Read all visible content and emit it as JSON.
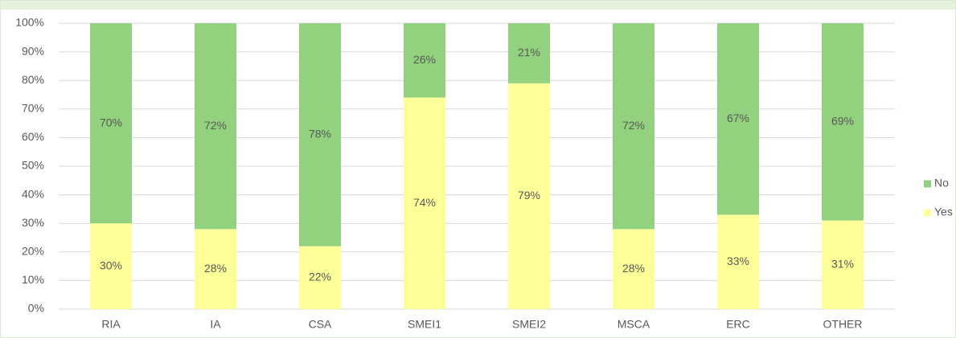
{
  "chart_data": {
    "type": "stacked_bar",
    "categories": [
      "RIA",
      "IA",
      "CSA",
      "SMEI1",
      "SMEI2",
      "MSCA",
      "ERC",
      "OTHER"
    ],
    "series": [
      {
        "name": "Yes",
        "color": "#ffff99",
        "values": [
          30,
          28,
          22,
          74,
          79,
          28,
          33,
          31
        ],
        "value_labels": [
          "30%",
          "28%",
          "22%",
          "74%",
          "79%",
          "28%",
          "33%",
          "31%"
        ]
      },
      {
        "name": "No",
        "color": "#92d17e",
        "values": [
          70,
          72,
          78,
          26,
          21,
          72,
          67,
          69
        ],
        "value_labels": [
          "70%",
          "72%",
          "78%",
          "26%",
          "21%",
          "72%",
          "67%",
          "69%"
        ]
      }
    ],
    "ylim": [
      0,
      100
    ],
    "yticks": [
      {
        "value": 0,
        "label": "0%"
      },
      {
        "value": 10,
        "label": "10%"
      },
      {
        "value": 20,
        "label": "20%"
      },
      {
        "value": 30,
        "label": "30%"
      },
      {
        "value": 40,
        "label": "40%"
      },
      {
        "value": 50,
        "label": "50%"
      },
      {
        "value": 60,
        "label": "60%"
      },
      {
        "value": 70,
        "label": "70%"
      },
      {
        "value": 80,
        "label": "80%"
      },
      {
        "value": 90,
        "label": "90%"
      },
      {
        "value": 100,
        "label": "100%"
      }
    ],
    "grid": true,
    "legend": "right"
  }
}
